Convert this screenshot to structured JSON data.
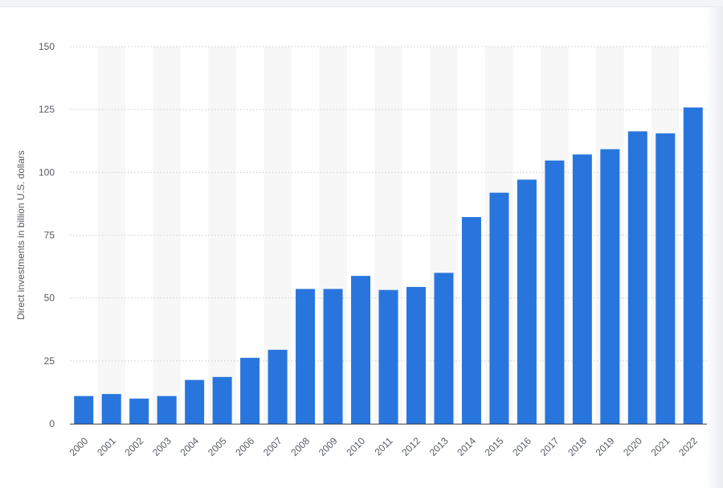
{
  "chart_data": {
    "type": "bar",
    "title": "",
    "xlabel": "",
    "ylabel": "Direct investments in billion U.S. dollars",
    "ylim": [
      0,
      150
    ],
    "yticks": [
      0,
      25,
      50,
      75,
      100,
      125,
      150
    ],
    "grid": true,
    "categories": [
      "2000",
      "2001",
      "2002",
      "2003",
      "2004",
      "2005",
      "2006",
      "2007",
      "2008",
      "2009",
      "2010",
      "2011",
      "2012",
      "2013",
      "2014",
      "2015",
      "2016",
      "2017",
      "2018",
      "2019",
      "2020",
      "2021",
      "2022"
    ],
    "values": [
      11,
      11.8,
      10,
      11,
      17.4,
      18.6,
      26.2,
      29.4,
      53.6,
      53.6,
      58.8,
      53.2,
      54.4,
      60,
      82.2,
      91.9,
      97.1,
      104.7,
      107.1,
      109.2,
      116.3,
      115.5,
      125.8
    ],
    "bar_color": "#2876dd",
    "band_color": "#f7f7f7"
  }
}
